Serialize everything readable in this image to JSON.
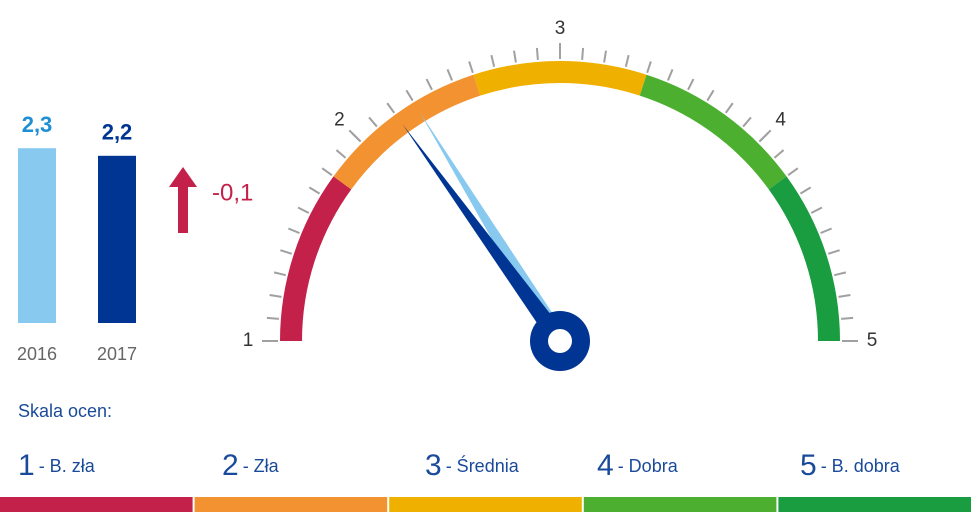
{
  "chart_data": {
    "type": "gauge",
    "categories": [
      "2016",
      "2017"
    ],
    "values": [
      2.3,
      2.2
    ],
    "value_labels": [
      "2,3",
      "2,2"
    ],
    "colors": [
      "#87c9ef",
      "#003594"
    ],
    "label_colors": [
      "#1e8fd6",
      "#003594"
    ],
    "change": -0.1,
    "change_label": "-0,1",
    "change_color": "#c4214a",
    "gauge_lim": [
      1,
      5
    ],
    "gauge_ticks": [
      1,
      2,
      3,
      4,
      5
    ],
    "minor_tick_step": 0.1,
    "band_edges": [
      1,
      1.8,
      2.6,
      3.4,
      4.2,
      5
    ],
    "band_colors": [
      "#c4214a",
      "#f39230",
      "#f0b000",
      "#4caf30",
      "#1a9c40"
    ],
    "scale_title": "Skala ocen:",
    "scale": [
      {
        "value": 1,
        "label": "- B. zła"
      },
      {
        "value": 2,
        "label": "- Zła"
      },
      {
        "value": 3,
        "label": "- Średnia"
      },
      {
        "value": 4,
        "label": "- Dobra"
      },
      {
        "value": 5,
        "label": "- B. dobra"
      }
    ]
  }
}
